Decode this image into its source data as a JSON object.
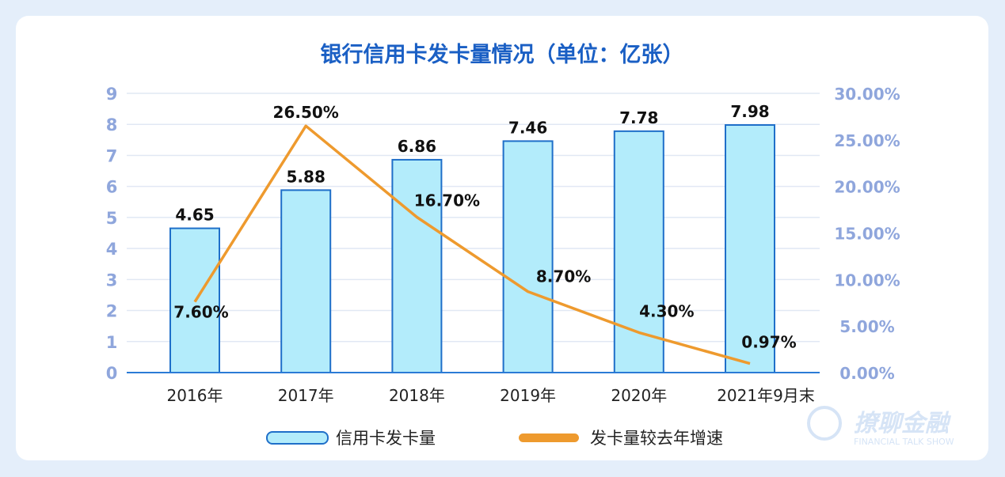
{
  "chart_data": {
    "type": "bar+line",
    "title": "银行信用卡发卡量情况（单位：亿张）",
    "categories": [
      "2016年",
      "2017年",
      "2018年",
      "2019年",
      "2020年",
      "2021年9月末"
    ],
    "series": [
      {
        "name": "信用卡发卡量",
        "type": "bar",
        "axis": "left",
        "values": [
          4.65,
          5.88,
          6.86,
          7.46,
          7.78,
          7.98
        ],
        "labels": [
          "4.65",
          "5.88",
          "6.86",
          "7.46",
          "7.78",
          "7.98"
        ]
      },
      {
        "name": "发卡量较去年增速",
        "type": "line",
        "axis": "right",
        "values": [
          7.6,
          26.5,
          16.7,
          8.7,
          4.3,
          0.97
        ],
        "labels": [
          "7.60%",
          "26.50%",
          "16.70%",
          "8.70%",
          "4.30%",
          "0.97%"
        ]
      }
    ],
    "y_left": {
      "range": [
        0,
        9
      ],
      "ticks": [
        "0",
        "1",
        "2",
        "3",
        "4",
        "5",
        "6",
        "7",
        "8",
        "9"
      ]
    },
    "y_right": {
      "range": [
        0,
        30
      ],
      "ticks": [
        "0.00%",
        "5.00%",
        "10.00%",
        "15.00%",
        "20.00%",
        "25.00%",
        "30.00%"
      ]
    },
    "grid": true,
    "legend": "bottom"
  },
  "colors": {
    "bar_fill": "#b3ecfb",
    "bar_stroke": "#1f6fc9",
    "line": "#ee9a2e",
    "axis_text": "#8fa6dc",
    "title": "#1a5fc4"
  },
  "watermark": {
    "name": "撩聊金融",
    "sub": "FINANCIAL TALK SHOW"
  }
}
